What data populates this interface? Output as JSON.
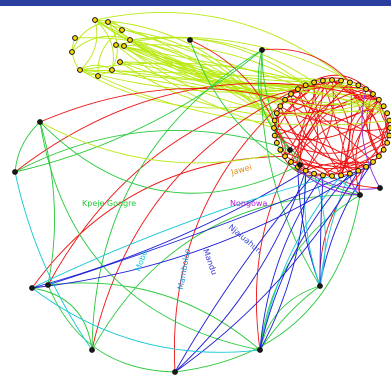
{
  "header_bar_color": "#2a3f9e",
  "edge_palette": {
    "red": "#ee1111",
    "yellow_green": "#b9ea14",
    "green": "#27c93a",
    "cyan": "#15c9d6",
    "blue": "#1a1ad8",
    "purple": "#8b2ad8"
  },
  "labels": {
    "kpeje_gongre": "Kpeje Gongre",
    "nongowa": "Nongowa",
    "njaluahun": "Njaluahun",
    "mamboloo": "Mamboloo",
    "mandu": "Mandu",
    "mobo": "Mobo",
    "jawei": "Jawei"
  },
  "node_colors": [
    "#ffd400",
    "#1a1a1a",
    "#ee1111",
    "#27c93a",
    "#15c9d6"
  ]
}
